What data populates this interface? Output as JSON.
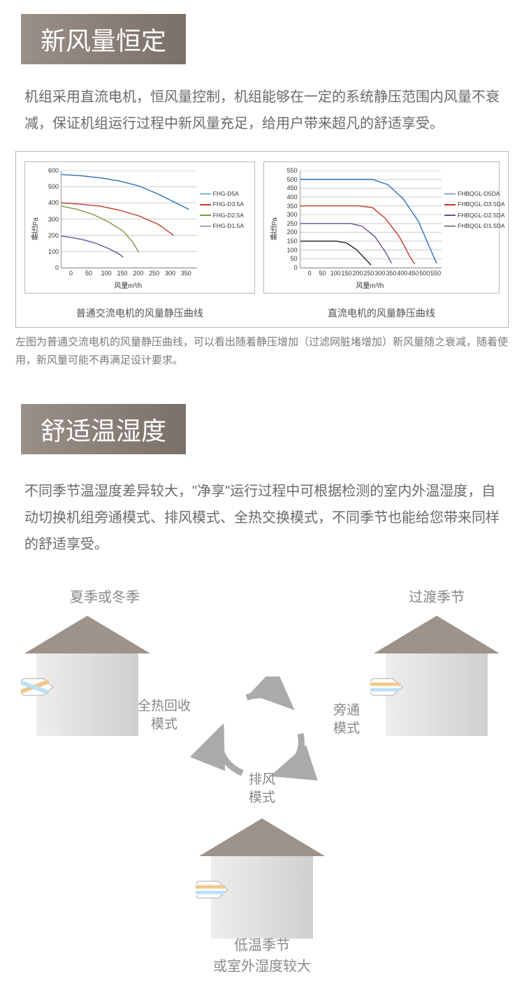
{
  "section1": {
    "title": "新风量恒定",
    "body": "机组采用直流电机，恒风量控制，机组能够在一定的系统静压范围内风量不衰减，保证机组运行过程中新风量充足，给用户带来超凡的舒适享受。",
    "footnote": "左图为普通交流电机的风量静压曲线，可以看出随着静压增加（过滤网脏堵增加）新风量随之衰减，随着使用，新风量可能不再满足设计要求。"
  },
  "chart1": {
    "type": "line",
    "caption": "普通交流电机的风量静压曲线",
    "xlabel": "风量m³/h",
    "ylabel": "静压Pa",
    "xlim": [
      0,
      350
    ],
    "ylim": [
      0,
      600
    ],
    "yticks": [
      0,
      100,
      200,
      300,
      400,
      500,
      600
    ],
    "xticks": [
      0,
      50,
      100,
      150,
      200,
      250,
      300,
      350
    ],
    "grid_color": "#d9d9d9",
    "series": [
      {
        "name": "FHG-D5A",
        "color": "#2b6fb5",
        "points": [
          [
            0,
            575
          ],
          [
            50,
            568
          ],
          [
            100,
            555
          ],
          [
            150,
            535
          ],
          [
            200,
            505
          ],
          [
            250,
            455
          ],
          [
            300,
            395
          ],
          [
            330,
            360
          ]
        ]
      },
      {
        "name": "FHG-D3.5A",
        "color": "#c0392b",
        "points": [
          [
            0,
            400
          ],
          [
            50,
            392
          ],
          [
            100,
            380
          ],
          [
            150,
            355
          ],
          [
            200,
            320
          ],
          [
            250,
            268
          ],
          [
            290,
            200
          ]
        ]
      },
      {
        "name": "FHG-D2.5A",
        "color": "#7a9a3c",
        "points": [
          [
            0,
            380
          ],
          [
            40,
            360
          ],
          [
            80,
            330
          ],
          [
            120,
            285
          ],
          [
            160,
            225
          ],
          [
            185,
            155
          ],
          [
            200,
            95
          ]
        ]
      },
      {
        "name": "FHG-D1.5A",
        "color": "#6a4d9c",
        "points": [
          [
            0,
            195
          ],
          [
            30,
            185
          ],
          [
            60,
            170
          ],
          [
            90,
            150
          ],
          [
            120,
            120
          ],
          [
            145,
            90
          ],
          [
            160,
            65
          ]
        ]
      }
    ]
  },
  "chart2": {
    "type": "line",
    "caption": "直流电机的风量静压曲线",
    "xlabel": "风量m³/h",
    "ylabel": "静压Pa",
    "xlim": [
      0,
      550
    ],
    "ylim": [
      0,
      550
    ],
    "yticks": [
      0,
      50,
      100,
      150,
      200,
      250,
      300,
      350,
      400,
      450,
      500,
      550
    ],
    "xticks": [
      0,
      50,
      100,
      150,
      200,
      250,
      300,
      350,
      400,
      450,
      500,
      550
    ],
    "grid_color": "#d9d9d9",
    "series": [
      {
        "name": "FHBQGL-D5DA",
        "color": "#2b6fb5",
        "points": [
          [
            0,
            500
          ],
          [
            100,
            500
          ],
          [
            200,
            500
          ],
          [
            280,
            500
          ],
          [
            340,
            470
          ],
          [
            400,
            390
          ],
          [
            460,
            260
          ],
          [
            510,
            90
          ],
          [
            530,
            25
          ]
        ]
      },
      {
        "name": "FHBQGL-D3.5DA",
        "color": "#c0392b",
        "points": [
          [
            0,
            350
          ],
          [
            80,
            350
          ],
          [
            160,
            350
          ],
          [
            225,
            350
          ],
          [
            280,
            340
          ],
          [
            330,
            280
          ],
          [
            385,
            175
          ],
          [
            425,
            65
          ],
          [
            445,
            20
          ]
        ]
      },
      {
        "name": "FHBQGL-D2.5DA",
        "color": "#6a4d9c",
        "points": [
          [
            0,
            250
          ],
          [
            70,
            250
          ],
          [
            140,
            250
          ],
          [
            195,
            250
          ],
          [
            240,
            235
          ],
          [
            290,
            175
          ],
          [
            330,
            90
          ],
          [
            355,
            25
          ]
        ]
      },
      {
        "name": "FHBQGL-D1.5DA",
        "color": "#222222",
        "points": [
          [
            0,
            150
          ],
          [
            50,
            150
          ],
          [
            100,
            150
          ],
          [
            140,
            150
          ],
          [
            180,
            140
          ],
          [
            220,
            100
          ],
          [
            255,
            45
          ],
          [
            275,
            15
          ]
        ]
      }
    ]
  },
  "section2": {
    "title": "舒适温湿度",
    "body": "不同季节温湿度差异较大，\"净享\"运行过程中可根据检测的室内外温湿度，自动切换机组旁通模式、排风模式、全热交换模式，不同季节也能给您带来同样的舒适享受。",
    "house_labels": {
      "left": "夏季或冬季",
      "right": "过渡季节"
    },
    "modes": {
      "top_left": "全热回收\n模式",
      "top_right": "旁通\n模式",
      "bottom": "排风\n模式"
    },
    "bottom_caption": "低温季节\n或室外湿度较大"
  },
  "styling": {
    "header_gradient": [
      "#9a9089",
      "#7a7069"
    ],
    "header_text": "#ffffff",
    "body_text_color": "#6a6a6a",
    "house_roof": "#9d938a",
    "house_wall_light": "#eeeeee",
    "house_wall_dark": "#cfcfcf",
    "hex_orange": "#f2c98c",
    "hex_blue": "#bde0f5",
    "arrow_color": "#aaaaaa"
  }
}
